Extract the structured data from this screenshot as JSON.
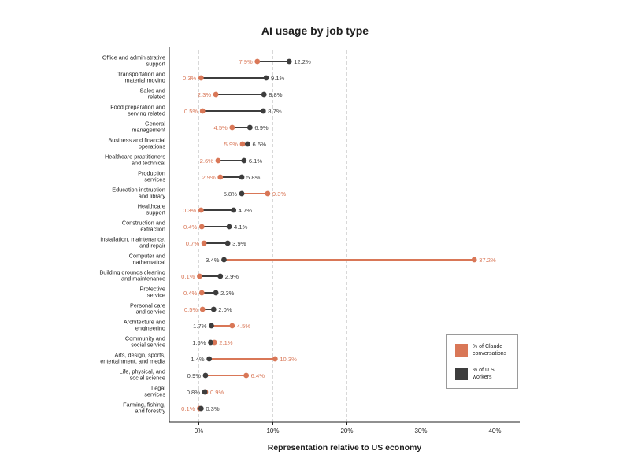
{
  "colors": {
    "claude": "#d97757",
    "workers": "#3d3d3d",
    "grid": "#cfcfcf",
    "axis": "#222222"
  },
  "chart_data": {
    "type": "dumbbell",
    "title": "AI usage by job type",
    "xlabel": "Representation relative to US economy",
    "ylabel": "",
    "xlim": [
      -4,
      42
    ],
    "xticks": [
      0,
      10,
      20,
      30,
      40
    ],
    "xtick_labels": [
      "0%",
      "10%",
      "20%",
      "30%",
      "40%"
    ],
    "grid": "vertical dashed",
    "legend_position": "bottom-right",
    "series": [
      {
        "name": "% of Claude conversations",
        "color": "#d97757"
      },
      {
        "name": "% of U.S. workers",
        "color": "#3d3d3d"
      }
    ],
    "categories": [
      {
        "label": [
          "Office and administrative",
          "support"
        ],
        "claude": 7.9,
        "workers": 12.2
      },
      {
        "label": [
          "Transportation and",
          "material moving"
        ],
        "claude": 0.3,
        "workers": 9.1
      },
      {
        "label": [
          "Sales and",
          "related"
        ],
        "claude": 2.3,
        "workers": 8.8
      },
      {
        "label": [
          "Food preparation and",
          "serving related"
        ],
        "claude": 0.5,
        "workers": 8.7
      },
      {
        "label": [
          "General",
          "management"
        ],
        "claude": 4.5,
        "workers": 6.9
      },
      {
        "label": [
          "Business and financial",
          "operations"
        ],
        "claude": 5.9,
        "workers": 6.6
      },
      {
        "label": [
          "Healthcare practitioners",
          "and technical"
        ],
        "claude": 2.6,
        "workers": 6.1
      },
      {
        "label": [
          "Production",
          "services"
        ],
        "claude": 2.9,
        "workers": 5.8
      },
      {
        "label": [
          "Education instruction",
          "and library"
        ],
        "claude": 9.3,
        "workers": 5.8
      },
      {
        "label": [
          "Healthcare",
          "support"
        ],
        "claude": 0.3,
        "workers": 4.7
      },
      {
        "label": [
          "Construction and",
          "extraction"
        ],
        "claude": 0.4,
        "workers": 4.1
      },
      {
        "label": [
          "Installation, maintenance,",
          "and repair"
        ],
        "claude": 0.7,
        "workers": 3.9
      },
      {
        "label": [
          "Computer and",
          "mathematical"
        ],
        "claude": 37.2,
        "workers": 3.4
      },
      {
        "label": [
          "Building grounds cleaning",
          "and maintenance"
        ],
        "claude": 0.1,
        "workers": 2.9
      },
      {
        "label": [
          "Protective",
          "service"
        ],
        "claude": 0.4,
        "workers": 2.3
      },
      {
        "label": [
          "Personal care",
          "and service"
        ],
        "claude": 0.5,
        "workers": 2.0
      },
      {
        "label": [
          "Architecture and",
          "engineering"
        ],
        "claude": 4.5,
        "workers": 1.7
      },
      {
        "label": [
          "Community and",
          "social service"
        ],
        "claude": 2.1,
        "workers": 1.6
      },
      {
        "label": [
          "Arts, design, sports,",
          "entertainment, and media"
        ],
        "claude": 10.3,
        "workers": 1.4
      },
      {
        "label": [
          "Life, physical, and",
          "social science"
        ],
        "claude": 6.4,
        "workers": 0.9
      },
      {
        "label": [
          "Legal",
          "services"
        ],
        "claude": 0.9,
        "workers": 0.8
      },
      {
        "label": [
          "Farming, fishing,",
          "and forestry"
        ],
        "claude": 0.1,
        "workers": 0.3
      }
    ]
  },
  "legend": {
    "claude_lines": [
      "% of Claude",
      "conversations"
    ],
    "workers_lines": [
      "% of U.S.",
      "workers"
    ]
  }
}
